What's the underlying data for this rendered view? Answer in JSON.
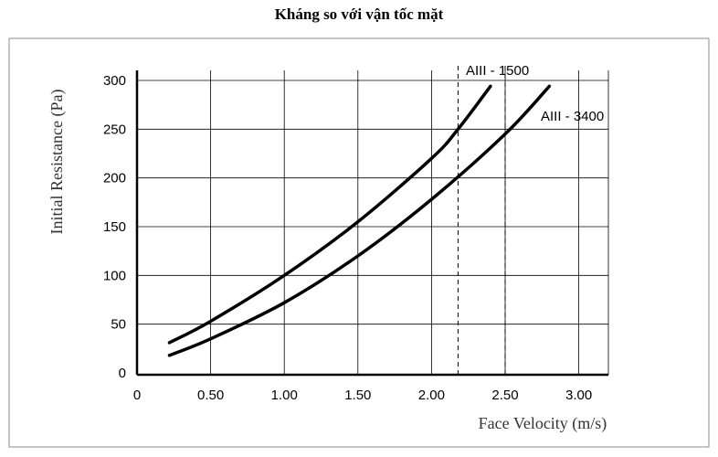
{
  "chart_data": {
    "type": "line",
    "title": "Kháng so với vận tốc mặt",
    "xlabel": "Face Velocity (m/s)",
    "ylabel": "Initial Resistance (Pa)",
    "xlim": [
      0,
      3.2
    ],
    "ylim": [
      0,
      300
    ],
    "x_ticks": [
      "0",
      "0.50",
      "1.00",
      "1.50",
      "2.00",
      "2.50",
      "3.00"
    ],
    "x_tick_values": [
      0,
      0.5,
      1.0,
      1.5,
      2.0,
      2.5,
      3.0
    ],
    "y_ticks": [
      "0",
      "50",
      "100",
      "150",
      "200",
      "250",
      "300"
    ],
    "y_tick_values": [
      0,
      50,
      100,
      150,
      200,
      250,
      300
    ],
    "grid": true,
    "series": [
      {
        "name": "AIII - 1500",
        "x": [
          0.22,
          0.5,
          1.0,
          1.5,
          2.0,
          2.18,
          2.4
        ],
        "y": [
          31,
          53,
          100,
          155,
          220,
          250,
          294
        ]
      },
      {
        "name": "AIII - 3400",
        "x": [
          0.22,
          0.5,
          1.0,
          1.5,
          2.0,
          2.5,
          2.8
        ],
        "y": [
          18,
          35,
          72,
          120,
          178,
          245,
          294
        ]
      }
    ],
    "reference_lines_x": [
      2.18,
      2.5
    ],
    "colors": {
      "line": "#000000",
      "grid": "#000000",
      "frame": "#888888"
    }
  }
}
